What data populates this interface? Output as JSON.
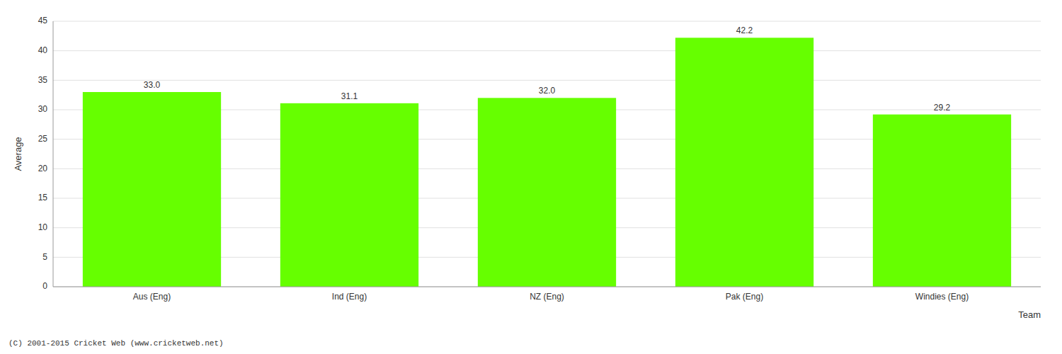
{
  "chart_data": {
    "type": "bar",
    "categories": [
      "Aus (Eng)",
      "Ind (Eng)",
      "NZ (Eng)",
      "Pak (Eng)",
      "Windies (Eng)"
    ],
    "values": [
      33.0,
      31.1,
      32.0,
      42.2,
      29.2
    ],
    "value_labels": [
      "33.0",
      "31.1",
      "32.0",
      "42.2",
      "29.2"
    ],
    "data_labels": true,
    "color": "#66ff00",
    "ylabel": "Average",
    "xlabel": "Team",
    "ylim": [
      0,
      45
    ],
    "yticks": [
      0,
      5,
      10,
      15,
      20,
      25,
      30,
      35,
      40,
      45
    ],
    "grid": true,
    "annotations": [
      "(C) 2001-2015 Cricket Web (www.cricketweb.net)"
    ]
  }
}
